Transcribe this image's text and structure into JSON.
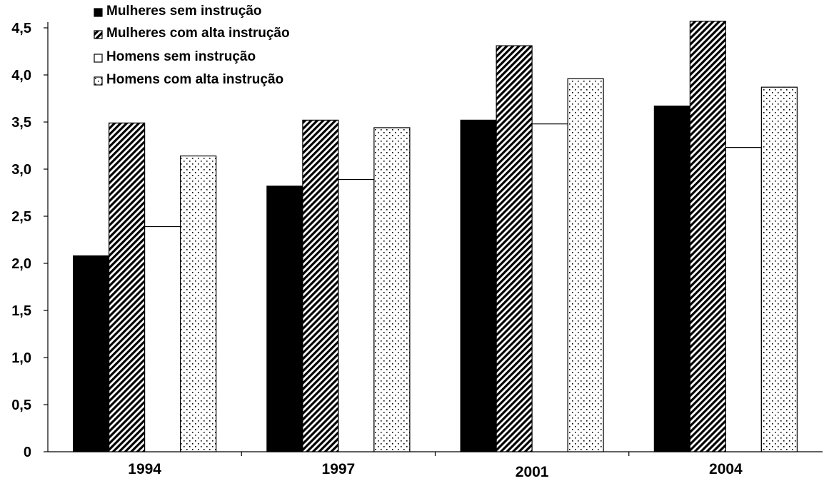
{
  "chart_data": {
    "type": "bar",
    "title": "",
    "xlabel": "",
    "ylabel": "",
    "categories": [
      "1994",
      "1997",
      "2001",
      "2004"
    ],
    "ylim": [
      0,
      4.5
    ],
    "yticks": [
      0,
      0.5,
      1.0,
      1.5,
      2.0,
      2.5,
      3.0,
      3.5,
      4.0,
      4.5
    ],
    "ytick_labels": [
      "0",
      "0,5",
      "1,0",
      "1,5",
      "2,0",
      "2,5",
      "3,0",
      "3,5",
      "4,0",
      "4,5"
    ],
    "grid": false,
    "legend_position": "top-left",
    "series": [
      {
        "name": "Mulheres sem instrução",
        "fill": "solid",
        "color": "#000000",
        "values": [
          2.08,
          2.82,
          3.52,
          3.67
        ]
      },
      {
        "name": "Mulheres com alta instrução",
        "fill": "diagonal-stripes",
        "color": "#000000",
        "values": [
          3.49,
          3.52,
          4.31,
          4.57
        ]
      },
      {
        "name": "Homens sem instrução",
        "fill": "none",
        "color": "#ffffff",
        "values": [
          2.39,
          2.89,
          3.48,
          3.23
        ]
      },
      {
        "name": "Homens com alta instrução",
        "fill": "dots",
        "color": "#ffffff",
        "values": [
          3.14,
          3.44,
          3.96,
          3.87
        ]
      }
    ]
  }
}
